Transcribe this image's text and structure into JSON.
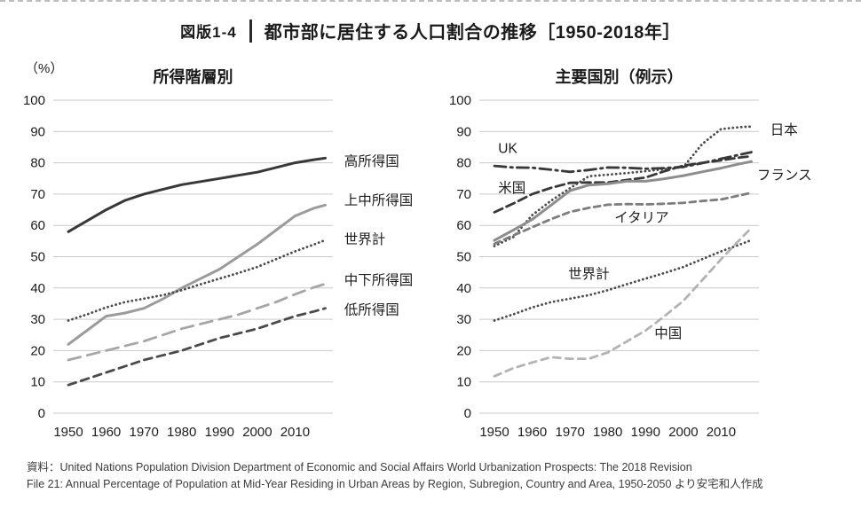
{
  "header": {
    "figure_label": "図版1-4",
    "title": "都市部に居住する人口割合の推移［1950-2018年］",
    "unit_label": "（%）"
  },
  "footer": {
    "line1": "資料：United Nations Population Division Department of Economic and Social Affairs World Urbanization Prospects: The 2018 Revision",
    "line2": "File 21: Annual Percentage of Population at Mid-Year Residing in Urban Areas by Region, Subregion, Country and Area, 1950-2050 より安宅和人作成"
  },
  "chart_data": [
    {
      "type": "line",
      "title": "所得階層別",
      "xlabel": "",
      "ylabel": "%",
      "grid": "horizontal",
      "legend": "inline-labels",
      "xlim": [
        1946,
        2020
      ],
      "ylim": [
        0,
        100
      ],
      "yticks": [
        0,
        10,
        20,
        30,
        40,
        50,
        60,
        70,
        80,
        90,
        100
      ],
      "xticks": [
        1950,
        1960,
        1970,
        1980,
        1990,
        2000,
        2010
      ],
      "x": [
        1950,
        1955,
        1960,
        1965,
        1970,
        1975,
        1980,
        1985,
        1990,
        1995,
        2000,
        2005,
        2010,
        2015,
        2018
      ],
      "series": [
        {
          "name": "高所得国",
          "values": [
            58,
            61.5,
            65,
            68,
            70,
            71.5,
            73,
            74,
            75,
            76,
            77,
            78.5,
            80,
            81,
            81.5
          ],
          "color": "#383838",
          "style": "solid",
          "width": 3,
          "label_pos": [
            2023,
            80.5
          ],
          "label_anchor": "start"
        },
        {
          "name": "上中所得国",
          "values": [
            22,
            26.5,
            31,
            32,
            33.5,
            36.5,
            40,
            43,
            46,
            50,
            54,
            58.5,
            63,
            65.5,
            66.5
          ],
          "color": "#9b9b9b",
          "style": "solid",
          "width": 3,
          "label_pos": [
            2023,
            68
          ],
          "label_anchor": "start"
        },
        {
          "name": "世界計",
          "values": [
            29.6,
            31.6,
            33.8,
            35.5,
            36.6,
            37.7,
            39.3,
            41.2,
            43,
            44.8,
            46.7,
            49.2,
            51.7,
            53.9,
            55.3
          ],
          "color": "#4a4a4a",
          "style": "dotted",
          "width": 2.8,
          "label_pos": [
            2023,
            55.5
          ],
          "label_anchor": "start"
        },
        {
          "name": "中下所得国",
          "values": [
            17,
            18.5,
            20,
            21.5,
            23,
            25,
            27,
            28.5,
            30,
            31.5,
            33.5,
            35.5,
            38,
            40.2,
            41.3
          ],
          "color": "#a6a6a6",
          "style": "longdash",
          "width": 2.8,
          "label_pos": [
            2023,
            42.5
          ],
          "label_anchor": "start"
        },
        {
          "name": "低所得国",
          "values": [
            9,
            11,
            13,
            15,
            17,
            18.5,
            20,
            22,
            24,
            25.5,
            27,
            29,
            31,
            32.5,
            33.5
          ],
          "color": "#4a4a4a",
          "style": "dashed",
          "width": 2.8,
          "label_pos": [
            2023,
            33
          ],
          "label_anchor": "start"
        }
      ]
    },
    {
      "type": "line",
      "title": "主要国別（例示）",
      "xlabel": "",
      "ylabel": "%",
      "grid": "horizontal",
      "legend": "inline-labels",
      "xlim": [
        1946,
        2020
      ],
      "ylim": [
        0,
        100
      ],
      "yticks": [
        0,
        10,
        20,
        30,
        40,
        50,
        60,
        70,
        80,
        90,
        100
      ],
      "xticks": [
        1950,
        1960,
        1970,
        1980,
        1990,
        2000,
        2010
      ],
      "x": [
        1950,
        1955,
        1960,
        1965,
        1970,
        1975,
        1980,
        1985,
        1990,
        1995,
        2000,
        2005,
        2010,
        2015,
        2018
      ],
      "series": [
        {
          "name": "日本",
          "values": [
            53.4,
            56.3,
            63.3,
            67.9,
            71.9,
            75.7,
            76.2,
            76.7,
            77.3,
            78,
            78.6,
            86,
            90.8,
            91.4,
            91.6
          ],
          "color": "#4a4a4a",
          "style": "dotted",
          "width": 2.8,
          "label_pos": [
            2023,
            90.5
          ],
          "label_anchor": "start"
        },
        {
          "name": "UK",
          "values": [
            79,
            78.5,
            78.4,
            77.8,
            77.1,
            77.7,
            78.5,
            78.4,
            78.1,
            78.3,
            78.7,
            79.9,
            81.3,
            82.6,
            83.4
          ],
          "color": "#383838",
          "style": "dashdot",
          "width": 2.8,
          "label_pos": [
            1951,
            84.5
          ],
          "label_anchor": "start"
        },
        {
          "name": "米国",
          "values": [
            64.2,
            67,
            70,
            72,
            73.6,
            73.7,
            73.7,
            74.5,
            75.3,
            77.3,
            79.1,
            80,
            80.8,
            81.7,
            82.1
          ],
          "color": "#383838",
          "style": "usdash",
          "width": 2.8,
          "label_pos": [
            1951,
            72
          ],
          "label_anchor": "start"
        },
        {
          "name": "フランス",
          "values": [
            55.2,
            58.5,
            61.9,
            66.5,
            71.1,
            72.9,
            73.3,
            74.1,
            74.1,
            74.9,
            75.9,
            77.1,
            78.3,
            79.7,
            80.4
          ],
          "color": "#8d8d8d",
          "style": "solid",
          "width": 3,
          "label_pos": [
            2019.5,
            76
          ],
          "label_anchor": "start"
        },
        {
          "name": "イタリア",
          "values": [
            54.1,
            56.8,
            59.4,
            62,
            64.3,
            65.6,
            66.6,
            66.8,
            66.7,
            66.9,
            67.2,
            67.8,
            68.3,
            69.6,
            70.4
          ],
          "color": "#7d7d7d",
          "style": "shortdash",
          "width": 2.8,
          "label_pos": [
            1989,
            62.5
          ],
          "label_anchor": "middle"
        },
        {
          "name": "世界計",
          "values": [
            29.6,
            31.6,
            33.8,
            35.5,
            36.6,
            37.7,
            39.3,
            41.2,
            43,
            44.8,
            46.7,
            49.2,
            51.7,
            53.9,
            55.3
          ],
          "color": "#4a4a4a",
          "style": "dotted",
          "width": 2.8,
          "label_pos": [
            1975,
            44.5
          ],
          "label_anchor": "middle"
        },
        {
          "name": "中国",
          "values": [
            11.8,
            14.4,
            16.2,
            17.9,
            17.4,
            17.4,
            19.4,
            22.9,
            26.4,
            31,
            35.9,
            42.5,
            49.2,
            55.5,
            59.2
          ],
          "color": "#b3b3b3",
          "style": "chdash",
          "width": 2.8,
          "label_pos": [
            1996,
            25.5
          ],
          "label_anchor": "middle"
        }
      ]
    }
  ]
}
